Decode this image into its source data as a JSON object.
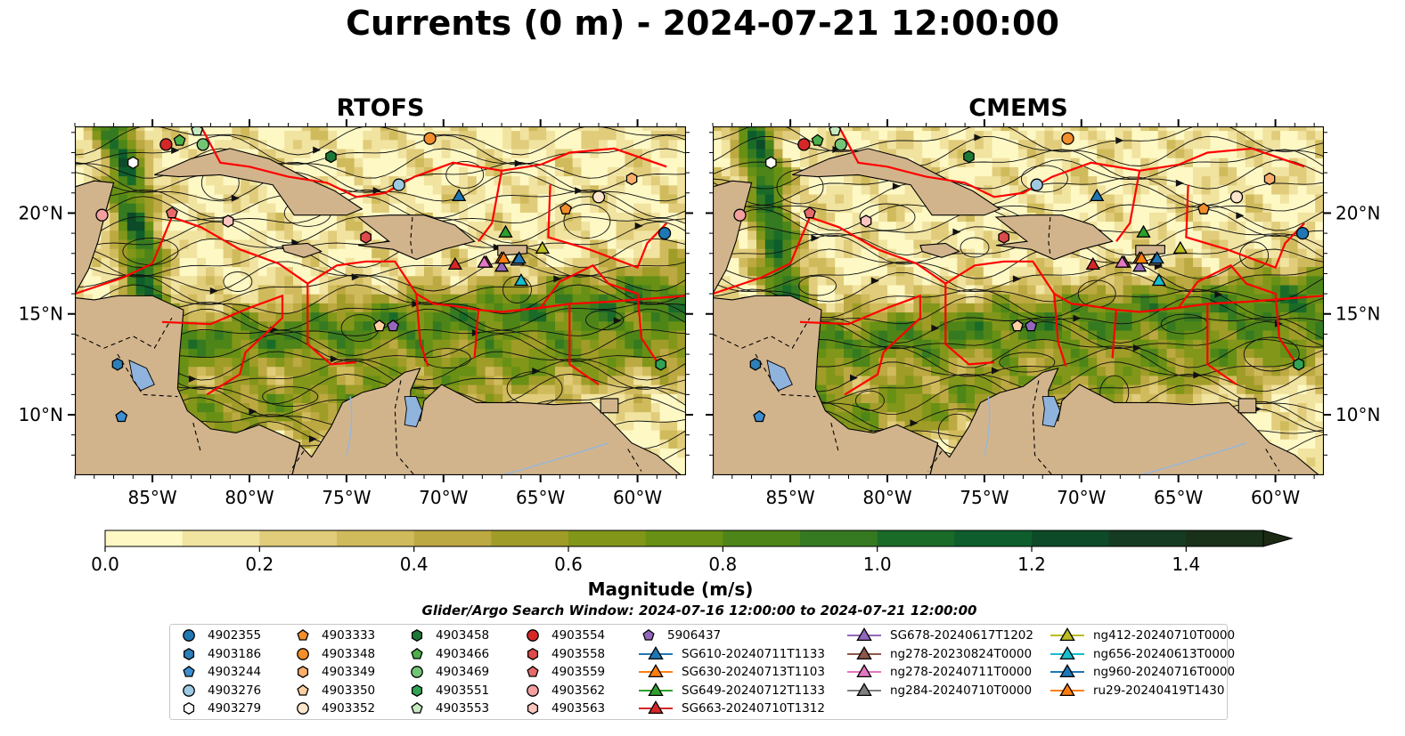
{
  "title": "Currents (0 m) - 2024-07-21 12:00:00",
  "panels": [
    {
      "title": "RTOFS"
    },
    {
      "title": "CMEMS"
    }
  ],
  "colorbar": {
    "label": "Magnitude (m/s)",
    "ticks": [
      "0.0",
      "0.2",
      "0.4",
      "0.6",
      "0.8",
      "1.0",
      "1.2",
      "1.4"
    ],
    "min": 0.0,
    "max": 1.5,
    "step": 0.1,
    "extend": "max",
    "colors": [
      "#fdf8c4",
      "#f1e3a0",
      "#e0cc7a",
      "#d0bb5c",
      "#bca942",
      "#a09c28",
      "#82961a",
      "#679015",
      "#4e8518",
      "#357a20",
      "#1a6b28",
      "#0d5e2c",
      "#0d4a28",
      "#153b22",
      "#1a3119",
      "#1c2a14"
    ]
  },
  "search_window": "Glider/Argo Search Window: 2024-07-16 12:00:00 to 2024-07-21 12:00:00",
  "chart_data": {
    "type": "map",
    "domain": {
      "lon": [
        -89,
        -57.5
      ],
      "lat": [
        7,
        24.3
      ]
    },
    "x_ticks": [
      "85°W",
      "80°W",
      "75°W",
      "70°W",
      "65°W",
      "60°W"
    ],
    "x_tick_values": [
      -85,
      -80,
      -75,
      -70,
      -65,
      -60
    ],
    "y_ticks": [
      "20°N",
      "15°N",
      "10°N"
    ],
    "y_tick_values": [
      20,
      15,
      10
    ],
    "legend_position": "bottom",
    "markers": [
      {
        "id": "4902355",
        "lon": -58.6,
        "lat": 19.0,
        "shape": "circle",
        "color": "#1f77b4"
      },
      {
        "id": "4903186",
        "lon": -86.8,
        "lat": 12.5,
        "shape": "hexagon",
        "color": "#2c7fb8"
      },
      {
        "id": "4903244",
        "lon": -86.6,
        "lat": 9.9,
        "shape": "pentagon",
        "color": "#3d8fd1"
      },
      {
        "id": "4903276",
        "lon": -72.3,
        "lat": 21.4,
        "shape": "circle",
        "color": "#9ecae1"
      },
      {
        "id": "4903279",
        "lon": -86.0,
        "lat": 22.5,
        "shape": "hexagon",
        "color": "#ffffff"
      },
      {
        "id": "4903333",
        "lon": -63.7,
        "lat": 20.2,
        "shape": "pentagon",
        "color": "#f28e2b"
      },
      {
        "id": "4903348",
        "lon": -70.7,
        "lat": 23.7,
        "shape": "circle",
        "color": "#f28e2b"
      },
      {
        "id": "4903349",
        "lon": -60.3,
        "lat": 21.7,
        "shape": "hexagon",
        "color": "#fdae6b"
      },
      {
        "id": "4903350",
        "lon": -73.3,
        "lat": 14.4,
        "shape": "pentagon",
        "color": "#fdd0a2"
      },
      {
        "id": "4903352",
        "lon": -62.0,
        "lat": 20.8,
        "shape": "circle",
        "color": "#fee6ce"
      },
      {
        "id": "4903458",
        "lon": -75.8,
        "lat": 22.8,
        "shape": "hexagon",
        "color": "#1b7837"
      },
      {
        "id": "4903466",
        "lon": -83.6,
        "lat": 23.6,
        "shape": "pentagon",
        "color": "#4daf4a"
      },
      {
        "id": "4903469",
        "lon": -82.4,
        "lat": 23.4,
        "shape": "circle",
        "color": "#74c476"
      },
      {
        "id": "4903551",
        "lon": -58.8,
        "lat": 12.5,
        "shape": "hexagon",
        "color": "#31a354"
      },
      {
        "id": "4903553",
        "lon": -82.7,
        "lat": 24.1,
        "shape": "pentagon",
        "color": "#c7e9c0"
      },
      {
        "id": "4903554",
        "lon": -84.3,
        "lat": 23.4,
        "shape": "circle",
        "color": "#d62728"
      },
      {
        "id": "4903558",
        "lon": -74.0,
        "lat": 18.8,
        "shape": "hexagon",
        "color": "#de4a4a"
      },
      {
        "id": "4903559",
        "lon": -84.0,
        "lat": 20.0,
        "shape": "pentagon",
        "color": "#e66a6a"
      },
      {
        "id": "4903562",
        "lon": -87.6,
        "lat": 19.9,
        "shape": "circle",
        "color": "#f4a0a0"
      },
      {
        "id": "4903563",
        "lon": -81.1,
        "lat": 19.6,
        "shape": "hexagon",
        "color": "#fcc5c0"
      },
      {
        "id": "5906437",
        "lon": -72.6,
        "lat": 14.4,
        "shape": "pentagon",
        "color": "#9467bd"
      },
      {
        "id": "SG610-20240711T1133",
        "lon": -69.2,
        "lat": 20.8,
        "shape": "triangle",
        "color": "#1f77b4"
      },
      {
        "id": "SG630-20240713T1103",
        "lon": -67.0,
        "lat": 17.7,
        "shape": "triangle",
        "color": "#ff7f0e"
      },
      {
        "id": "SG649-20240712T1133",
        "lon": -66.8,
        "lat": 19.0,
        "shape": "triangle",
        "color": "#2ca02c"
      },
      {
        "id": "SG663-20240710T1312",
        "lon": -69.4,
        "lat": 17.4,
        "shape": "triangle",
        "color": "#d62728"
      },
      {
        "id": "SG678-20240617T1202",
        "lon": -67.0,
        "lat": 17.3,
        "shape": "triangle",
        "color": "#9467bd"
      },
      {
        "id": "ng278-20230824T0000",
        "lon": -67.8,
        "lat": 17.5,
        "shape": "triangle",
        "color": "#8c564b"
      },
      {
        "id": "ng278-20240711T0000",
        "lon": -67.9,
        "lat": 17.5,
        "shape": "triangle",
        "color": "#e377c2"
      },
      {
        "id": "ng284-20240710T0000",
        "lon": -66.2,
        "lat": 17.6,
        "shape": "triangle",
        "color": "#7f7f7f"
      },
      {
        "id": "ng412-20240710T0000",
        "lon": -64.9,
        "lat": 18.2,
        "shape": "triangle",
        "color": "#bcbd22"
      },
      {
        "id": "ng656-20240613T0000",
        "lon": -66.0,
        "lat": 16.6,
        "shape": "triangle",
        "color": "#17becf"
      },
      {
        "id": "ng960-20240716T0000",
        "lon": -66.1,
        "lat": 17.7,
        "shape": "triangle",
        "color": "#1f77b4"
      },
      {
        "id": "ru29-20240419T1430",
        "lon": -66.9,
        "lat": 17.7,
        "shape": "triangle",
        "color": "#ff7f0e"
      }
    ]
  }
}
